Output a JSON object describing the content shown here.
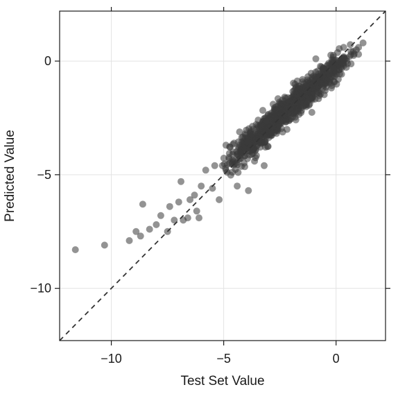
{
  "chart_data": {
    "type": "scatter",
    "title": "",
    "xlabel": "Test Set Value",
    "ylabel": "Predicted Value",
    "xlim": [
      -12.3,
      2.2
    ],
    "ylim": [
      -12.3,
      2.2
    ],
    "x_ticks": [
      -10,
      -5,
      0
    ],
    "y_ticks": [
      -10,
      -5,
      0
    ],
    "x_tick_labels": [
      "−10",
      "−5",
      "0"
    ],
    "y_tick_labels": [
      "−10",
      "−5",
      "0"
    ],
    "grid": true,
    "reference_line": {
      "type": "identity",
      "style": "dashed",
      "from": [
        -12.3,
        -12.3
      ],
      "to": [
        2.2,
        2.2
      ]
    },
    "colors": {
      "points": "#3a3a3a",
      "frame": "#1a1a1a",
      "grid": "#e3e3e3",
      "reference_line": "#333333"
    },
    "point_opacity": 0.55,
    "outliers": [
      {
        "x": -11.6,
        "y": -8.3
      },
      {
        "x": -10.3,
        "y": -8.1
      },
      {
        "x": -9.2,
        "y": -7.9
      },
      {
        "x": -8.6,
        "y": -6.3
      },
      {
        "x": -8.7,
        "y": -7.7
      },
      {
        "x": -8.3,
        "y": -7.4
      },
      {
        "x": -8.9,
        "y": -7.5
      },
      {
        "x": -8.0,
        "y": -7.2
      },
      {
        "x": -7.8,
        "y": -6.8
      },
      {
        "x": -7.5,
        "y": -7.5
      },
      {
        "x": -7.2,
        "y": -7.0
      },
      {
        "x": -7.4,
        "y": -6.4
      },
      {
        "x": -7.0,
        "y": -6.2
      },
      {
        "x": -6.9,
        "y": -5.3
      },
      {
        "x": -6.5,
        "y": -6.1
      },
      {
        "x": -6.3,
        "y": -5.9
      },
      {
        "x": -6.6,
        "y": -6.9
      },
      {
        "x": -6.2,
        "y": -6.6
      },
      {
        "x": -6.8,
        "y": -7.0
      },
      {
        "x": -6.0,
        "y": -5.5
      },
      {
        "x": -5.8,
        "y": -4.8
      },
      {
        "x": -5.5,
        "y": -5.6
      },
      {
        "x": -5.2,
        "y": -6.1
      },
      {
        "x": -6.1,
        "y": -6.9
      },
      {
        "x": -5.4,
        "y": -4.6
      },
      {
        "x": -3.9,
        "y": -5.7
      },
      {
        "x": -4.4,
        "y": -5.5
      },
      {
        "x": -3.4,
        "y": -3.2
      },
      {
        "x": -0.9,
        "y": 0.1
      },
      {
        "x": -0.3,
        "y": -0.6
      },
      {
        "x": 0.1,
        "y": -0.8
      },
      {
        "x": 0.6,
        "y": 0.2
      },
      {
        "x": 0.9,
        "y": 0.5
      },
      {
        "x": 1.0,
        "y": 0.6
      },
      {
        "x": 1.2,
        "y": 0.8
      },
      {
        "x": 1.0,
        "y": 0.3
      },
      {
        "x": -1.5,
        "y": -1.6
      },
      {
        "x": -2.8,
        "y": -1.9
      },
      {
        "x": -4.9,
        "y": -3.7
      },
      {
        "x": -3.2,
        "y": -4.6
      }
    ],
    "cluster": {
      "description": "dense band of points along the diagonal",
      "x_range": [
        -5.2,
        1.0
      ],
      "slope": 0.88,
      "intercept": -0.25,
      "spread": 0.32,
      "count": 900
    }
  }
}
